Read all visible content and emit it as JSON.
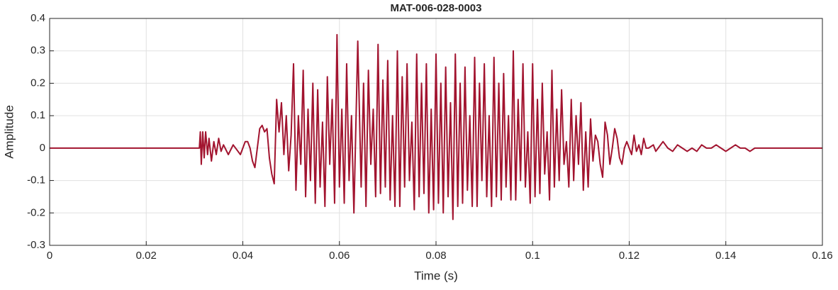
{
  "chart_data": {
    "type": "line",
    "title": "MAT-006-028-0003",
    "x_label": "Time (s)",
    "y_label": "Amplitude",
    "color": "#A2142F",
    "grid": true,
    "xlim": [
      0,
      0.16
    ],
    "ylim": [
      -0.3,
      0.4
    ],
    "xticks": [
      0,
      0.02,
      0.04,
      0.06,
      0.08,
      0.1,
      0.12,
      0.14,
      0.16
    ],
    "yticks": [
      -0.3,
      -0.2,
      -0.1,
      0,
      0.1,
      0.2,
      0.3,
      0.4
    ],
    "x": [
      0,
      0.031,
      0.0312,
      0.0314,
      0.0317,
      0.032,
      0.0323,
      0.0327,
      0.033,
      0.0335,
      0.034,
      0.0345,
      0.035,
      0.0355,
      0.036,
      0.037,
      0.038,
      0.039,
      0.0395,
      0.04,
      0.0405,
      0.041,
      0.0415,
      0.042,
      0.0425,
      0.043,
      0.0435,
      0.044,
      0.0445,
      0.045,
      0.0455,
      0.046,
      0.0465,
      0.047,
      0.0475,
      0.048,
      0.0485,
      0.049,
      0.0495,
      0.05,
      0.0505,
      0.051,
      0.0515,
      0.052,
      0.0525,
      0.053,
      0.0535,
      0.054,
      0.0545,
      0.055,
      0.0555,
      0.056,
      0.0565,
      0.057,
      0.0575,
      0.058,
      0.0585,
      0.059,
      0.0595,
      0.06,
      0.0605,
      0.061,
      0.0615,
      0.062,
      0.0625,
      0.063,
      0.0638,
      0.0645,
      0.065,
      0.0655,
      0.066,
      0.0665,
      0.067,
      0.0675,
      0.068,
      0.0685,
      0.069,
      0.0695,
      0.07,
      0.0705,
      0.071,
      0.0715,
      0.072,
      0.0725,
      0.073,
      0.0735,
      0.074,
      0.0745,
      0.075,
      0.0755,
      0.076,
      0.0765,
      0.077,
      0.0775,
      0.078,
      0.0785,
      0.079,
      0.0795,
      0.08,
      0.0805,
      0.081,
      0.0815,
      0.082,
      0.0825,
      0.083,
      0.0835,
      0.084,
      0.0845,
      0.085,
      0.0855,
      0.086,
      0.0865,
      0.087,
      0.0875,
      0.088,
      0.0885,
      0.089,
      0.0895,
      0.09,
      0.0905,
      0.091,
      0.0915,
      0.092,
      0.0925,
      0.093,
      0.0935,
      0.094,
      0.0945,
      0.095,
      0.0955,
      0.096,
      0.0965,
      0.097,
      0.0975,
      0.098,
      0.0985,
      0.099,
      0.0995,
      0.1,
      0.1005,
      0.101,
      0.1015,
      0.102,
      0.1025,
      0.103,
      0.1035,
      0.104,
      0.1045,
      0.105,
      0.1055,
      0.106,
      0.1065,
      0.107,
      0.1075,
      0.108,
      0.1085,
      0.109,
      0.1095,
      0.11,
      0.1105,
      0.111,
      0.1115,
      0.112,
      0.1125,
      0.113,
      0.1135,
      0.114,
      0.1145,
      0.115,
      0.1155,
      0.116,
      0.1165,
      0.117,
      0.1175,
      0.118,
      0.1185,
      0.119,
      0.1195,
      0.12,
      0.1205,
      0.121,
      0.1215,
      0.122,
      0.1225,
      0.123,
      0.1235,
      0.124,
      0.125,
      0.1255,
      0.126,
      0.127,
      0.128,
      0.129,
      0.13,
      0.131,
      0.132,
      0.133,
      0.134,
      0.135,
      0.136,
      0.137,
      0.138,
      0.139,
      0.14,
      0.141,
      0.142,
      0.143,
      0.144,
      0.145,
      0.146,
      0.148,
      0.15,
      0.152,
      0.154,
      0.156,
      0.158,
      0.16
    ],
    "values": [
      0,
      0,
      0.05,
      -0.05,
      0.05,
      -0.03,
      0.05,
      -0.02,
      0.03,
      -0.04,
      0.02,
      -0.02,
      0.03,
      -0.01,
      0.01,
      -0.02,
      0.01,
      -0.01,
      -0.02,
      0,
      0.02,
      0.02,
      0,
      -0.04,
      -0.06,
      0,
      0.06,
      0.07,
      0.05,
      0.06,
      -0.03,
      -0.08,
      -0.11,
      0.15,
      0.05,
      0.14,
      -0.02,
      0.1,
      -0.07,
      0.04,
      0.26,
      -0.13,
      0.1,
      -0.05,
      0.24,
      -0.15,
      0.12,
      -0.1,
      0.2,
      -0.17,
      0.18,
      -0.12,
      0.08,
      -0.18,
      0.22,
      -0.05,
      0.15,
      -0.17,
      0.35,
      -0.12,
      0.12,
      -0.17,
      0.26,
      -0.1,
      0.1,
      -0.2,
      0.33,
      -0.12,
      0.2,
      -0.18,
      0.24,
      -0.05,
      0.12,
      -0.15,
      0.32,
      -0.14,
      0.21,
      -0.12,
      0.27,
      -0.16,
      0.1,
      -0.18,
      0.3,
      -0.18,
      0.22,
      -0.12,
      0.26,
      -0.1,
      0.08,
      -0.19,
      0.29,
      -0.15,
      0.2,
      -0.14,
      0.26,
      -0.2,
      0.12,
      -0.19,
      0.29,
      -0.17,
      0.2,
      -0.2,
      0.25,
      -0.15,
      0.14,
      -0.22,
      0.29,
      -0.18,
      0.2,
      -0.17,
      0.25,
      -0.13,
      0.1,
      -0.18,
      0.28,
      -0.18,
      0.2,
      -0.1,
      0.26,
      -0.15,
      0.1,
      -0.18,
      0.28,
      -0.15,
      0.2,
      -0.16,
      0.23,
      -0.12,
      0.1,
      -0.16,
      0.3,
      -0.16,
      0.15,
      -0.1,
      0.26,
      -0.12,
      0.05,
      -0.17,
      0.26,
      -0.15,
      0.15,
      -0.14,
      0.2,
      -0.08,
      0.05,
      -0.16,
      0.24,
      -0.12,
      0.12,
      -0.1,
      0.18,
      -0.05,
      0.02,
      -0.12,
      0.15,
      -0.1,
      0.1,
      -0.05,
      0.14,
      -0.13,
      0.05,
      -0.12,
      0.09,
      -0.04,
      0.04,
      0.02,
      -0.05,
      -0.09,
      0.08,
      0.04,
      -0.05,
      0,
      0.06,
      0.03,
      -0.03,
      -0.05,
      0,
      0.02,
      0,
      -0.02,
      0.04,
      -0.01,
      0.01,
      -0.02,
      0.03,
      0,
      0,
      0.01,
      -0.01,
      0,
      0.02,
      0,
      -0.01,
      0.01,
      0,
      -0.01,
      0,
      -0.01,
      0.01,
      0,
      0,
      0.01,
      0,
      -0.01,
      0,
      0.01,
      0,
      0,
      -0.01,
      0,
      0,
      0,
      0,
      0,
      0,
      0,
      0
    ]
  }
}
